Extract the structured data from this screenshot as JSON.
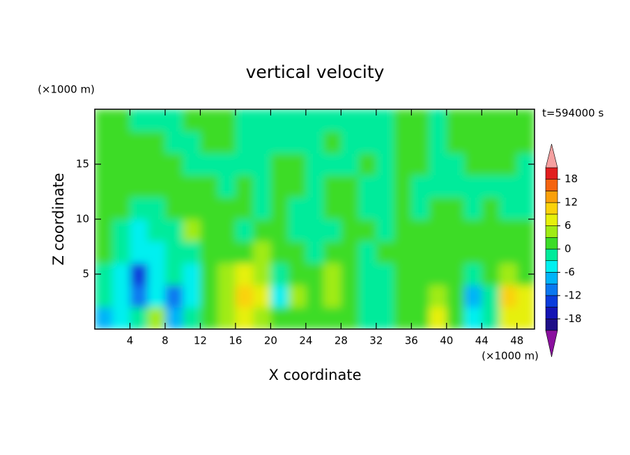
{
  "chart_data": {
    "type": "contour",
    "title": "vertical velocity",
    "x_label": "X coordinate",
    "y_label": "Z coordinate",
    "x_unit": "(×1000 m)",
    "y_unit": "(×1000 m)",
    "time_label": "t=594000 s",
    "xlim": [
      0,
      50
    ],
    "ylim": [
      0,
      20
    ],
    "xticks": [
      4,
      8,
      12,
      16,
      20,
      24,
      28,
      32,
      36,
      40,
      44,
      48
    ],
    "yticks": [
      5,
      10,
      15
    ],
    "x": [
      1,
      3,
      5,
      7,
      9,
      11,
      13,
      15,
      17,
      19,
      21,
      23,
      25,
      27,
      29,
      31,
      33,
      35,
      37,
      39,
      41,
      43,
      45,
      47,
      49
    ],
    "y": [
      1,
      3,
      5,
      7,
      9,
      11,
      13,
      15,
      17,
      19
    ],
    "z": [
      [
        -9,
        -4,
        -2,
        4,
        -9,
        -3,
        1,
        4,
        7,
        5,
        1,
        0,
        1,
        1,
        0,
        -1,
        -1,
        0,
        1,
        6,
        1,
        -5,
        -1,
        7,
        6
      ],
      [
        -2,
        -5,
        -10,
        -5,
        -10,
        -5,
        1,
        5,
        11,
        8,
        -6,
        4,
        1,
        3,
        1,
        -1,
        -1,
        0,
        2,
        5,
        1,
        -7,
        -1,
        9,
        7
      ],
      [
        -1,
        -5,
        -13,
        -6,
        -3,
        -6,
        0,
        4,
        7,
        4,
        -2,
        1,
        0,
        3,
        1,
        -1,
        -2,
        0,
        1,
        2,
        0,
        -3,
        0,
        3,
        2
      ],
      [
        0,
        -3,
        -6,
        -5,
        -2,
        -2,
        1,
        1,
        0,
        4,
        1,
        0,
        -1,
        0,
        1,
        -1,
        0,
        1,
        1,
        0,
        1,
        0,
        1,
        1,
        1
      ],
      [
        1,
        -1,
        -4,
        -3,
        -1,
        5,
        1,
        0,
        -1,
        1,
        0,
        -1,
        -1,
        -1,
        1,
        0,
        -1,
        1,
        1,
        1,
        0,
        0,
        1,
        1,
        1
      ],
      [
        1,
        0,
        -1,
        -2,
        1,
        1,
        1,
        0,
        1,
        -1,
        1,
        -1,
        -1,
        1,
        1,
        -1,
        -1,
        0,
        -1,
        1,
        1,
        -1,
        0,
        -1,
        -1
      ],
      [
        1,
        1,
        1,
        1,
        1,
        1,
        0,
        -1,
        0,
        -1,
        1,
        1,
        -1,
        1,
        1,
        -1,
        -1,
        1,
        -1,
        -1,
        -1,
        -1,
        -1,
        -1,
        -1
      ],
      [
        1,
        1,
        1,
        0,
        1,
        -1,
        -1,
        -1,
        -1,
        -1,
        1,
        1,
        -1,
        -1,
        -1,
        1,
        -1,
        1,
        1,
        -1,
        -1,
        1,
        1,
        1,
        -1
      ],
      [
        1,
        1,
        1,
        1,
        -1,
        -1,
        1,
        1,
        -1,
        -1,
        -1,
        -1,
        -1,
        1,
        -1,
        -1,
        -1,
        1,
        1,
        -1,
        1,
        1,
        1,
        1,
        1
      ],
      [
        1,
        1,
        -1,
        -1,
        -1,
        1,
        1,
        1,
        -1,
        -1,
        -1,
        -1,
        -1,
        -1,
        -1,
        -1,
        -1,
        1,
        1,
        -1,
        1,
        1,
        1,
        1,
        1
      ]
    ],
    "levels": [
      -21,
      -18,
      -15,
      -12,
      -9,
      -6,
      -3,
      0,
      3,
      6,
      9,
      12,
      15,
      18,
      21
    ],
    "colors": [
      "#8a0f9e",
      "#1e0f88",
      "#1414b4",
      "#0a3cdc",
      "#0a78f0",
      "#00b4f8",
      "#00f0f0",
      "#00eb9b",
      "#3cdc28",
      "#a0eb14",
      "#e6f00a",
      "#fad20a",
      "#faa00a",
      "#f5640f",
      "#e11e1e",
      "#f5a0a0"
    ],
    "colorbar_ticks": [
      -18,
      -12,
      -6,
      0,
      6,
      12,
      18
    ]
  }
}
